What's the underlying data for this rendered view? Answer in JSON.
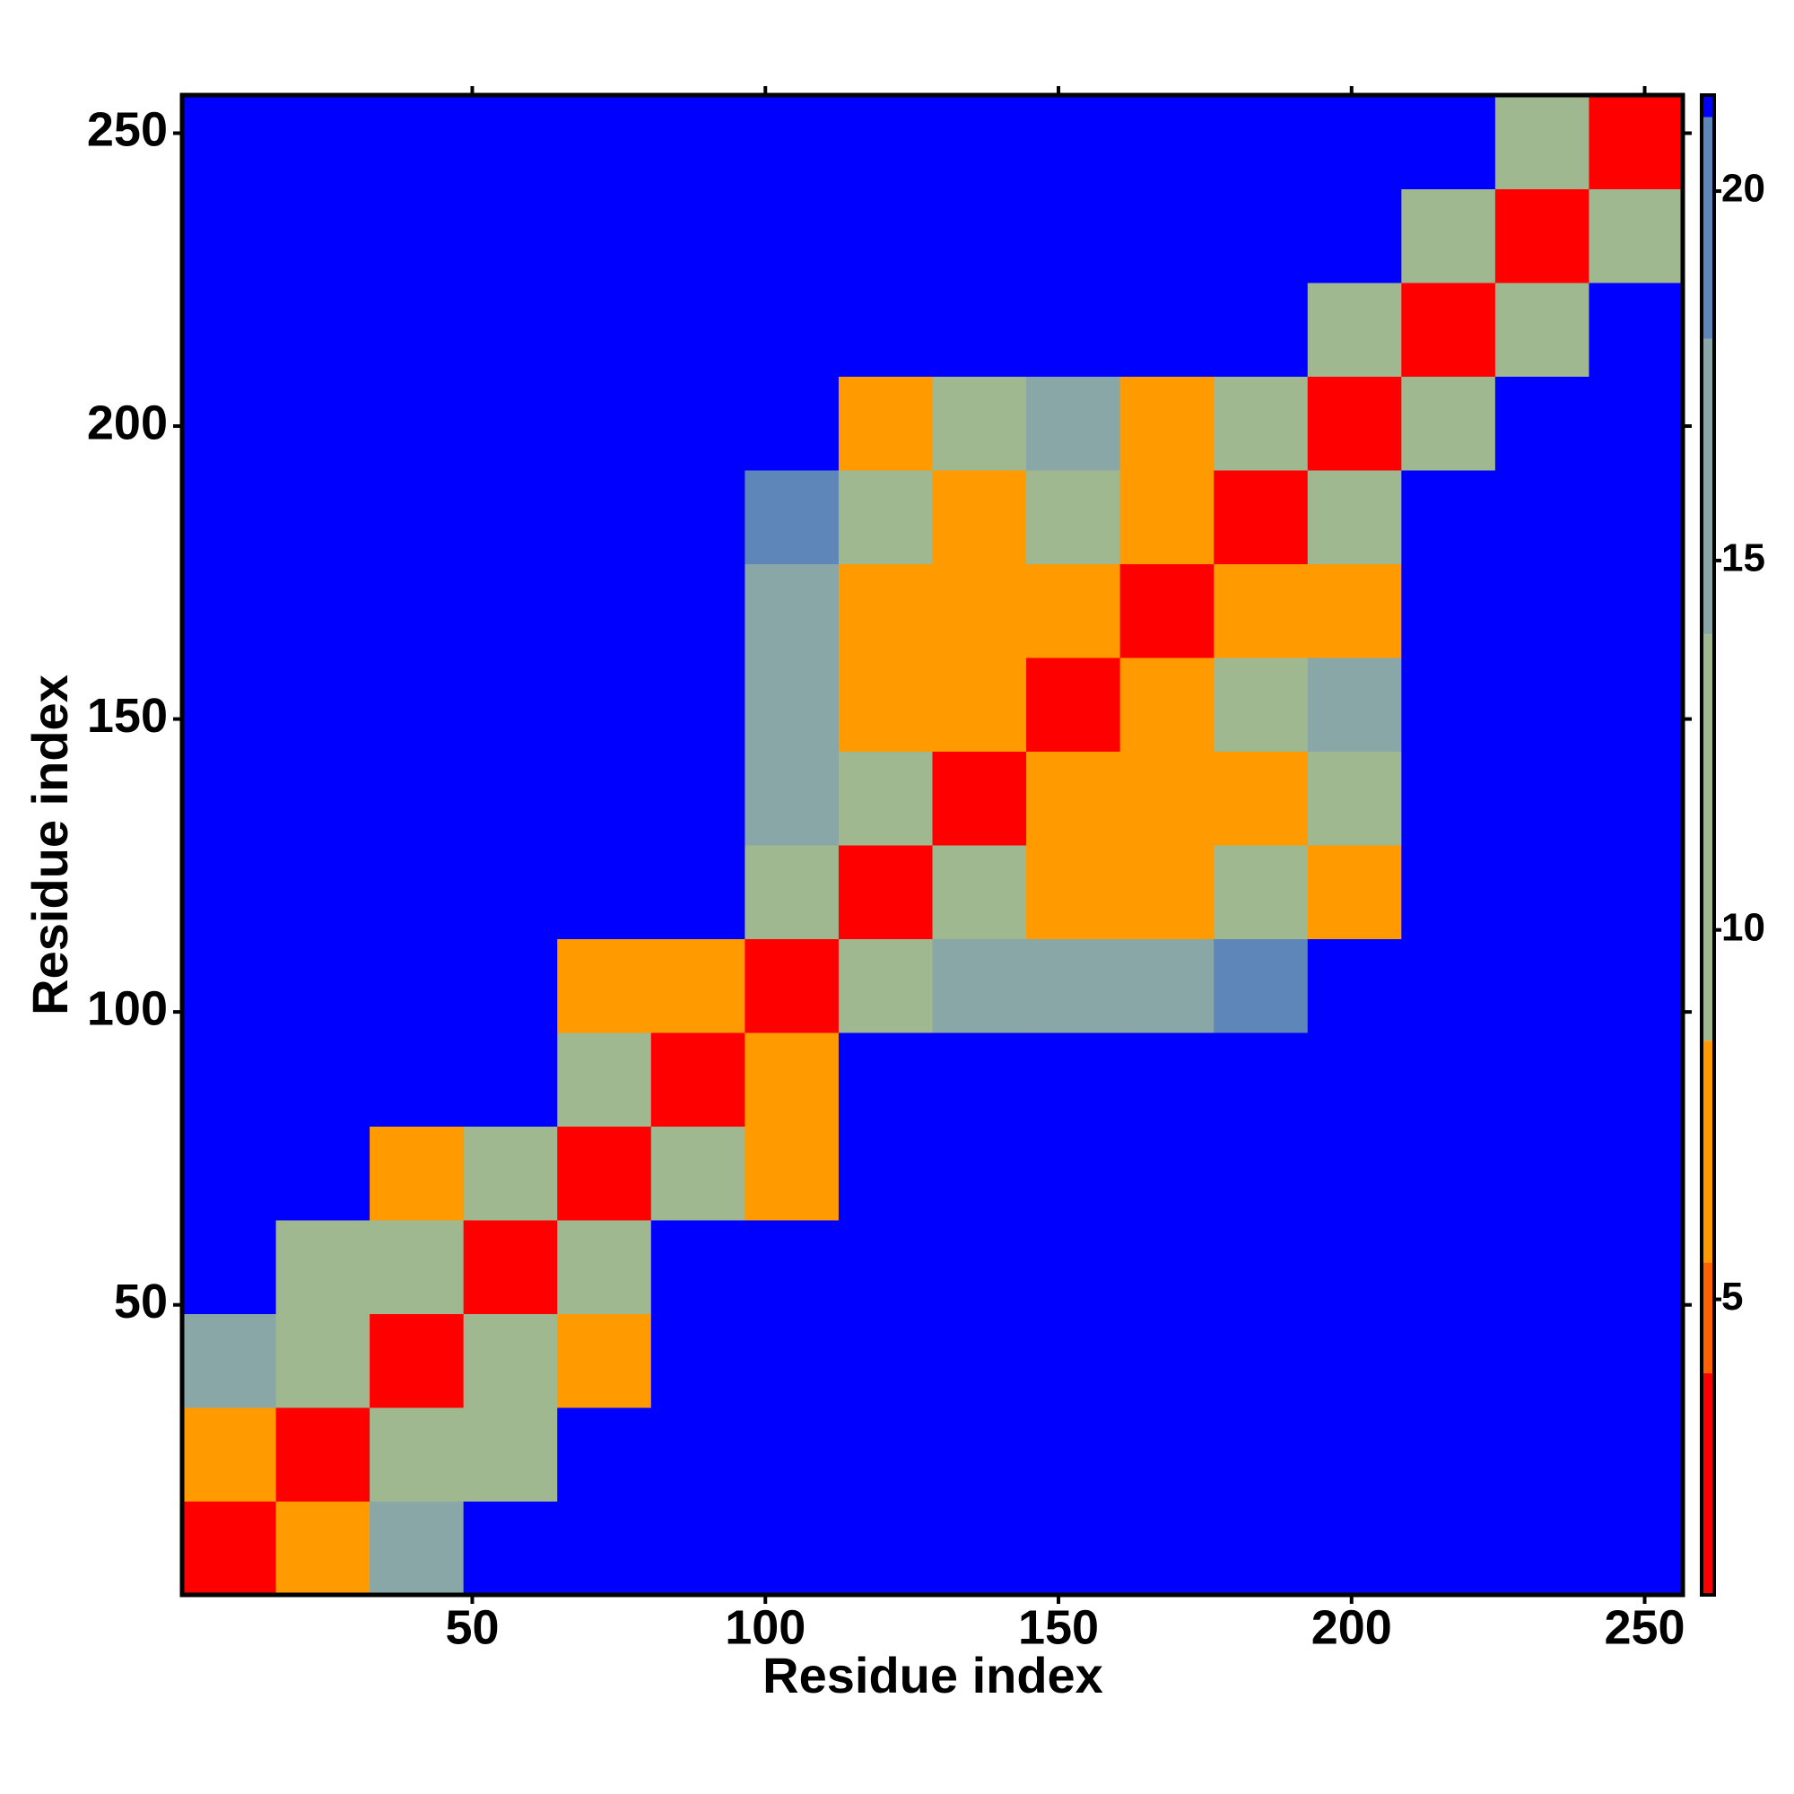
{
  "chart_data": {
    "type": "heatmap",
    "x_label": "Residue index",
    "y_label": "Residue index",
    "x_bins": [
      0.5,
      16.5,
      32.5,
      48.5,
      64.5,
      80.5,
      96.5,
      112.5,
      128.5,
      144.5,
      160.5,
      176.5,
      192.5,
      208.5,
      224.5,
      240.5,
      256.5
    ],
    "y_bins": [
      0.5,
      16.5,
      32.5,
      48.5,
      64.5,
      80.5,
      96.5,
      112.5,
      128.5,
      144.5,
      160.5,
      176.5,
      192.5,
      208.5,
      224.5,
      240.5,
      256.5
    ],
    "values": [
      [
        2,
        7,
        14,
        22,
        22,
        22,
        22,
        22,
        22,
        22,
        22,
        22,
        22,
        22,
        22,
        22
      ],
      [
        7,
        2,
        11,
        13,
        22,
        22,
        22,
        22,
        22,
        22,
        22,
        22,
        22,
        22,
        22,
        22
      ],
      [
        14,
        11,
        2,
        9,
        7,
        22,
        22,
        22,
        22,
        22,
        22,
        22,
        22,
        22,
        22,
        22
      ],
      [
        22,
        13,
        9,
        2,
        9,
        22,
        22,
        22,
        22,
        22,
        22,
        22,
        22,
        22,
        22,
        22
      ],
      [
        22,
        22,
        7,
        9,
        2,
        9,
        7,
        22,
        22,
        22,
        22,
        22,
        22,
        22,
        22,
        22
      ],
      [
        22,
        22,
        22,
        22,
        9,
        2,
        8,
        22,
        22,
        22,
        22,
        22,
        22,
        22,
        22,
        22
      ],
      [
        22,
        22,
        22,
        22,
        7,
        8,
        2,
        9,
        14,
        14,
        15,
        18,
        22,
        22,
        22,
        22
      ],
      [
        22,
        22,
        22,
        22,
        22,
        22,
        9,
        2,
        10,
        8,
        8,
        13,
        8,
        22,
        22,
        22
      ],
      [
        22,
        22,
        22,
        22,
        22,
        22,
        14,
        10,
        2,
        7,
        7,
        7,
        13,
        22,
        22,
        22
      ],
      [
        22,
        22,
        22,
        22,
        22,
        22,
        14,
        8,
        7,
        2,
        8,
        13,
        14,
        22,
        22,
        22
      ],
      [
        22,
        22,
        22,
        22,
        22,
        22,
        15,
        8,
        7,
        8,
        2,
        8,
        7,
        22,
        22,
        22
      ],
      [
        22,
        22,
        22,
        22,
        22,
        22,
        18,
        13,
        7,
        13,
        8,
        2,
        9,
        22,
        22,
        22
      ],
      [
        22,
        22,
        22,
        22,
        22,
        22,
        22,
        8,
        13,
        14,
        7,
        9,
        2,
        11,
        22,
        22
      ],
      [
        22,
        22,
        22,
        22,
        22,
        22,
        22,
        22,
        22,
        22,
        22,
        22,
        11,
        2,
        11,
        22
      ],
      [
        22,
        22,
        22,
        22,
        22,
        22,
        22,
        22,
        22,
        22,
        22,
        22,
        22,
        11,
        2,
        11
      ],
      [
        22,
        22,
        22,
        22,
        22,
        22,
        22,
        22,
        22,
        22,
        22,
        22,
        22,
        22,
        11,
        2
      ]
    ],
    "xlim": [
      0.5,
      256.5
    ],
    "ylim": [
      0.5,
      256.5
    ],
    "xticks": [
      50,
      100,
      150,
      200,
      250
    ],
    "yticks": [
      50,
      100,
      150,
      200,
      250
    ],
    "colorbar_lim": [
      1,
      21.3
    ],
    "colorbar_ticks": [
      5,
      10,
      15,
      20
    ],
    "colorscale": [
      [
        1,
        "#ff0000"
      ],
      [
        4,
        "#ff6000"
      ],
      [
        5.5,
        "#ff9a00"
      ],
      [
        8.5,
        "#9fb890"
      ],
      [
        14,
        "#8aa7a8"
      ],
      [
        18,
        "#5f86b8"
      ],
      [
        21,
        "#0000ff"
      ]
    ]
  }
}
